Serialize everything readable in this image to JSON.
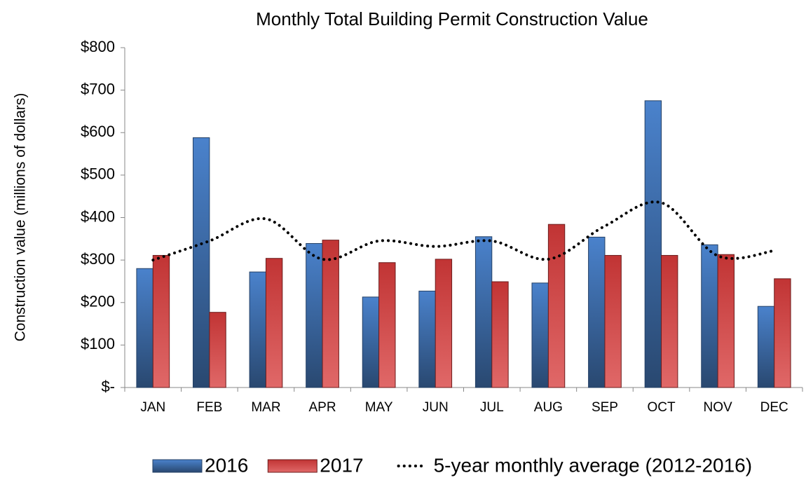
{
  "chart_data": {
    "type": "bar",
    "title": "Monthly Total Building Permit Construction Value",
    "y_label": "Construction value (millions of dollars)",
    "categories": [
      "JAN",
      "FEB",
      "MAR",
      "APR",
      "MAY",
      "JUN",
      "JUL",
      "AUG",
      "SEP",
      "OCT",
      "NOV",
      "DEC"
    ],
    "series": [
      {
        "name": "2016",
        "type": "bar",
        "color": "#4a82cc",
        "values": [
          280,
          588,
          272,
          339,
          213,
          227,
          355,
          246,
          354,
          675,
          336,
          191
        ]
      },
      {
        "name": "2017",
        "type": "bar",
        "color": "#d63a3a",
        "values": [
          311,
          177,
          304,
          347,
          294,
          302,
          249,
          384,
          311,
          311,
          313,
          256
        ]
      },
      {
        "name": "5-year monthly average (2012-2016)",
        "type": "line",
        "color": "#000000",
        "dotted": true,
        "values": [
          300,
          345,
          397,
          302,
          345,
          332,
          345,
          302,
          380,
          435,
          310,
          322
        ]
      }
    ],
    "ylim": [
      0,
      800
    ],
    "yticks": [
      {
        "value": 0,
        "label": "$-"
      },
      {
        "value": 100,
        "label": "$100"
      },
      {
        "value": 200,
        "label": "$200"
      },
      {
        "value": 300,
        "label": "$300"
      },
      {
        "value": 400,
        "label": "$400"
      },
      {
        "value": 500,
        "label": "$500"
      },
      {
        "value": 600,
        "label": "$600"
      },
      {
        "value": 700,
        "label": "$700"
      },
      {
        "value": 800,
        "label": "$800"
      }
    ],
    "grid": false,
    "legend": "bottom"
  }
}
